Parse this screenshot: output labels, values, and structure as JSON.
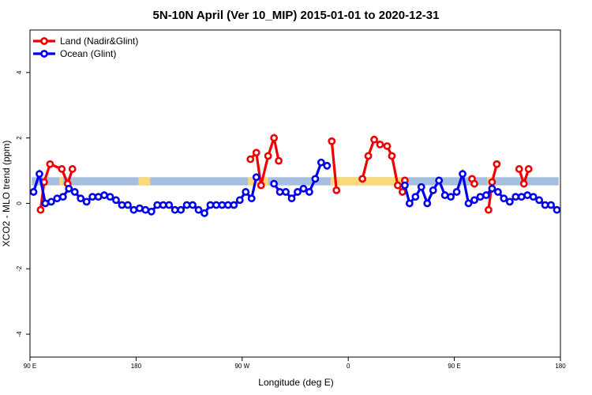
{
  "chart_data": {
    "type": "line",
    "title": "5N-10N April (Ver 10_MIP)   2015-01-01 to 2020-12-31",
    "xlabel": "Longitude (deg E)",
    "ylabel": "XCO2 - MLO trend (ppm)",
    "x_ticks": [
      {
        "value": 90,
        "label": "90 E"
      },
      {
        "value": 180,
        "label": "180"
      },
      {
        "value": 270,
        "label": "90 W"
      },
      {
        "value": 360,
        "label": "0"
      },
      {
        "value": 450,
        "label": "90 E"
      },
      {
        "value": 540,
        "label": "180"
      }
    ],
    "y_ticks": [
      {
        "value": -4,
        "label": "-4"
      },
      {
        "value": -2,
        "label": "-2"
      },
      {
        "value": 0,
        "label": "0"
      },
      {
        "value": 2,
        "label": "2"
      },
      {
        "value": 4,
        "label": "4"
      }
    ],
    "xlim": [
      90,
      540
    ],
    "ylim": [
      -4.7,
      5.3
    ],
    "legend_position": "top-left",
    "band": {
      "ymin": 0.55,
      "ymax": 0.8,
      "color_default": "#a7bfdf",
      "color_highlight": "#fbd97a",
      "highlight_ranges": [
        [
          115,
          118
        ],
        [
          182,
          192
        ],
        [
          275,
          292
        ],
        [
          345,
          405
        ],
        [
          478,
          482
        ]
      ]
    },
    "series": [
      {
        "name": "Land (Nadir&Glint)",
        "color": "#ee0000",
        "segments": [
          [
            [
              99,
              -0.2
            ],
            [
              102,
              0.65
            ],
            [
              107,
              1.2
            ],
            [
              117,
              1.05
            ],
            [
              122,
              0.6
            ],
            [
              126,
              1.05
            ]
          ],
          [
            [
              277,
              1.35
            ],
            [
              282,
              1.55
            ],
            [
              286,
              0.55
            ],
            [
              292,
              1.45
            ],
            [
              297,
              2.0
            ],
            [
              301,
              1.3
            ]
          ],
          [
            [
              346,
              1.9
            ],
            [
              350,
              0.4
            ]
          ],
          [
            [
              372,
              0.75
            ],
            [
              377,
              1.45
            ],
            [
              382,
              1.95
            ],
            [
              387,
              1.8
            ],
            [
              393,
              1.75
            ],
            [
              397,
              1.45
            ],
            [
              402,
              0.55
            ],
            [
              406,
              0.35
            ],
            [
              408,
              0.7
            ]
          ],
          [
            [
              465,
              0.75
            ],
            [
              467,
              0.6
            ]
          ],
          [
            [
              479,
              -0.2
            ],
            [
              482,
              0.65
            ],
            [
              486,
              1.2
            ]
          ],
          [
            [
              505,
              1.05
            ],
            [
              509,
              0.6
            ],
            [
              513,
              1.05
            ]
          ]
        ]
      },
      {
        "name": "Ocean (Glint)",
        "color": "#0000ee",
        "segments": [
          [
            [
              93,
              0.35
            ],
            [
              98,
              0.9
            ],
            [
              103,
              0.0
            ],
            [
              108,
              0.05
            ],
            [
              113,
              0.15
            ],
            [
              118,
              0.2
            ],
            [
              123,
              0.45
            ],
            [
              128,
              0.35
            ],
            [
              133,
              0.15
            ],
            [
              138,
              0.05
            ],
            [
              143,
              0.2
            ],
            [
              148,
              0.2
            ],
            [
              153,
              0.25
            ],
            [
              158,
              0.2
            ],
            [
              163,
              0.1
            ],
            [
              168,
              -0.05
            ],
            [
              173,
              -0.05
            ],
            [
              178,
              -0.2
            ],
            [
              183,
              -0.15
            ],
            [
              188,
              -0.2
            ],
            [
              193,
              -0.25
            ],
            [
              198,
              -0.05
            ],
            [
              203,
              -0.05
            ],
            [
              208,
              -0.05
            ],
            [
              213,
              -0.2
            ],
            [
              218,
              -0.2
            ],
            [
              223,
              -0.05
            ],
            [
              228,
              -0.05
            ],
            [
              233,
              -0.2
            ],
            [
              238,
              -0.3
            ],
            [
              243,
              -0.05
            ],
            [
              248,
              -0.05
            ],
            [
              253,
              -0.05
            ],
            [
              258,
              -0.05
            ],
            [
              263,
              -0.05
            ],
            [
              268,
              0.1
            ],
            [
              273,
              0.35
            ],
            [
              278,
              0.15
            ],
            [
              282,
              0.8
            ]
          ],
          [
            [
              297,
              0.6
            ],
            [
              302,
              0.35
            ],
            [
              307,
              0.35
            ],
            [
              312,
              0.15
            ],
            [
              317,
              0.35
            ],
            [
              322,
              0.45
            ],
            [
              327,
              0.35
            ],
            [
              332,
              0.75
            ],
            [
              337,
              1.25
            ],
            [
              342,
              1.15
            ]
          ],
          [
            [
              408,
              0.55
            ],
            [
              412,
              0.0
            ],
            [
              417,
              0.2
            ],
            [
              422,
              0.5
            ],
            [
              427,
              0.0
            ],
            [
              432,
              0.4
            ],
            [
              437,
              0.7
            ],
            [
              442,
              0.25
            ],
            [
              447,
              0.2
            ],
            [
              452,
              0.35
            ],
            [
              457,
              0.9
            ],
            [
              462,
              0.0
            ],
            [
              467,
              0.1
            ],
            [
              472,
              0.2
            ],
            [
              477,
              0.25
            ],
            [
              482,
              0.45
            ],
            [
              487,
              0.35
            ],
            [
              492,
              0.15
            ],
            [
              497,
              0.05
            ],
            [
              502,
              0.2
            ],
            [
              507,
              0.2
            ],
            [
              512,
              0.25
            ],
            [
              517,
              0.2
            ],
            [
              522,
              0.1
            ],
            [
              527,
              -0.05
            ],
            [
              532,
              -0.05
            ],
            [
              537,
              -0.2
            ]
          ]
        ]
      }
    ]
  }
}
